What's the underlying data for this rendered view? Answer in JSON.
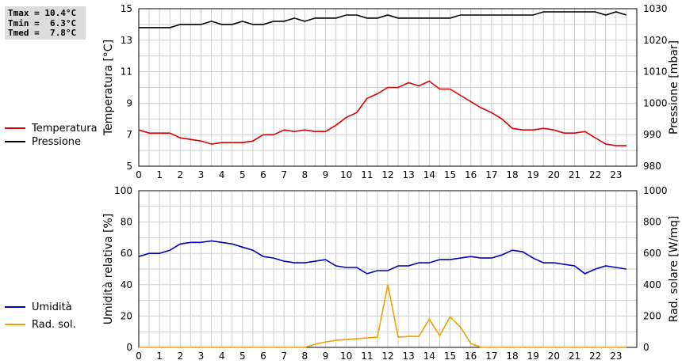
{
  "summary": {
    "tmax": "Tmax = 10.4°C",
    "tmin": "Tmin =  6.3°C",
    "tmed": "Tmed =  7.8°C"
  },
  "legend_top": [
    {
      "label": "Temperatura",
      "color": "#dd0000"
    },
    {
      "label": "Pressione",
      "color": "#000000"
    }
  ],
  "legend_bottom": [
    {
      "label": "Umidità",
      "color": "#0000bb"
    },
    {
      "label": "Rad. sol.",
      "color": "#f0a000"
    }
  ],
  "chart_data": [
    {
      "type": "line",
      "x_ticks": [
        "0",
        "1",
        "2",
        "3",
        "4",
        "5",
        "6",
        "7",
        "8",
        "9",
        "10",
        "11",
        "12",
        "13",
        "14",
        "15",
        "16",
        "17",
        "18",
        "19",
        "20",
        "21",
        "22",
        "23"
      ],
      "xlim": [
        0,
        24
      ],
      "ylabel_left": "Temperatura [°C]",
      "ylabel_right": "Pressione [mbar]",
      "ylim_left": [
        5,
        15
      ],
      "yticks_left": [
        "5",
        "7",
        "9",
        "11",
        "13",
        "15"
      ],
      "ylim_right": [
        980,
        1030
      ],
      "yticks_right": [
        "980",
        "990",
        "1000",
        "1010",
        "1020",
        "1030"
      ],
      "grid": true,
      "series": [
        {
          "name": "Temperatura",
          "axis": "left",
          "color": "#dd0000",
          "x": [
            0,
            0.5,
            1,
            1.5,
            2,
            2.5,
            3,
            3.5,
            4,
            4.5,
            5,
            5.5,
            6,
            6.5,
            7,
            7.5,
            8,
            8.5,
            9,
            9.5,
            10,
            10.5,
            11,
            11.5,
            12,
            12.5,
            13,
            13.5,
            14,
            14.5,
            15,
            15.5,
            16,
            16.5,
            17,
            17.5,
            18,
            18.5,
            19,
            19.5,
            20,
            20.5,
            21,
            21.5,
            22,
            22.5,
            23,
            23.5
          ],
          "values": [
            7.3,
            7.1,
            7.1,
            7.1,
            6.8,
            6.7,
            6.6,
            6.4,
            6.5,
            6.5,
            6.5,
            6.6,
            7.0,
            7.0,
            7.3,
            7.2,
            7.3,
            7.2,
            7.2,
            7.6,
            8.1,
            8.4,
            9.3,
            9.6,
            10.0,
            10.0,
            10.3,
            10.1,
            10.4,
            9.9,
            9.9,
            9.5,
            9.1,
            8.7,
            8.4,
            8.0,
            7.4,
            7.3,
            7.3,
            7.4,
            7.3,
            7.1,
            7.1,
            7.2,
            6.8,
            6.4,
            6.3,
            6.3
          ]
        },
        {
          "name": "Pressione",
          "axis": "right",
          "color": "#000000",
          "x": [
            0,
            0.5,
            1,
            1.5,
            2,
            2.5,
            3,
            3.5,
            4,
            4.5,
            5,
            5.5,
            6,
            6.5,
            7,
            7.5,
            8,
            8.5,
            9,
            9.5,
            10,
            10.5,
            11,
            11.5,
            12,
            12.5,
            13,
            13.5,
            14,
            14.5,
            15,
            15.5,
            16,
            16.5,
            17,
            17.5,
            18,
            18.5,
            19,
            19.5,
            20,
            20.5,
            21,
            21.5,
            22,
            22.5,
            23,
            23.5
          ],
          "values": [
            1024,
            1024,
            1024,
            1024,
            1025,
            1025,
            1025,
            1026,
            1025,
            1025,
            1026,
            1025,
            1025,
            1026,
            1026,
            1027,
            1026,
            1027,
            1027,
            1027,
            1028,
            1028,
            1027,
            1027,
            1028,
            1027,
            1027,
            1027,
            1027,
            1027,
            1027,
            1028,
            1028,
            1028,
            1028,
            1028,
            1028,
            1028,
            1028,
            1029,
            1029,
            1029,
            1029,
            1029,
            1029,
            1028,
            1029,
            1028
          ]
        }
      ]
    },
    {
      "type": "line",
      "x_ticks": [
        "0",
        "1",
        "2",
        "3",
        "4",
        "5",
        "6",
        "7",
        "8",
        "9",
        "10",
        "11",
        "12",
        "13",
        "14",
        "15",
        "16",
        "17",
        "18",
        "19",
        "20",
        "21",
        "22",
        "23"
      ],
      "xlim": [
        0,
        24
      ],
      "ylabel_left": "Umidità relativa [%]",
      "ylabel_right": "Rad. solare [W/mq]",
      "ylim_left": [
        0,
        100
      ],
      "yticks_left": [
        "0",
        "20",
        "40",
        "60",
        "80",
        "100"
      ],
      "ylim_right": [
        0,
        1000
      ],
      "yticks_right": [
        "0",
        "200",
        "400",
        "600",
        "800",
        "1000"
      ],
      "grid": true,
      "series": [
        {
          "name": "Umidità",
          "axis": "left",
          "color": "#0000bb",
          "x": [
            0,
            0.5,
            1,
            1.5,
            2,
            2.5,
            3,
            3.5,
            4,
            4.5,
            5,
            5.5,
            6,
            6.5,
            7,
            7.5,
            8,
            8.5,
            9,
            9.5,
            10,
            10.5,
            11,
            11.5,
            12,
            12.5,
            13,
            13.5,
            14,
            14.5,
            15,
            15.5,
            16,
            16.5,
            17,
            17.5,
            18,
            18.5,
            19,
            19.5,
            20,
            20.5,
            21,
            21.5,
            22,
            22.5,
            23,
            23.5
          ],
          "values": [
            58,
            60,
            60,
            62,
            66,
            67,
            67,
            68,
            67,
            66,
            64,
            62,
            58,
            57,
            55,
            54,
            54,
            55,
            56,
            52,
            51,
            51,
            47,
            49,
            49,
            52,
            52,
            54,
            54,
            56,
            56,
            57,
            58,
            57,
            57,
            59,
            62,
            61,
            57,
            54,
            54,
            53,
            52,
            47,
            50,
            52,
            51,
            50
          ]
        },
        {
          "name": "Rad. sol.",
          "axis": "right",
          "color": "#f0a000",
          "x": [
            0,
            0.5,
            1,
            1.5,
            2,
            2.5,
            3,
            3.5,
            4,
            4.5,
            5,
            5.5,
            6,
            6.5,
            7,
            7.5,
            8,
            8.5,
            9,
            9.5,
            10,
            10.5,
            11,
            11.5,
            12,
            12.5,
            13,
            13.5,
            14,
            14.5,
            15,
            15.5,
            16,
            16.5,
            17,
            17.5,
            18,
            18.5,
            19,
            19.5,
            20,
            20.5,
            21,
            21.5,
            22,
            22.5,
            23,
            23.5
          ],
          "values": [
            0,
            0,
            0,
            0,
            0,
            0,
            0,
            0,
            0,
            0,
            0,
            0,
            0,
            0,
            0,
            0,
            0,
            20,
            35,
            45,
            50,
            55,
            60,
            65,
            400,
            65,
            70,
            70,
            180,
            75,
            195,
            130,
            25,
            0,
            0,
            0,
            0,
            0,
            0,
            0,
            0,
            0,
            0,
            0,
            0,
            0,
            0,
            0
          ]
        }
      ]
    }
  ]
}
